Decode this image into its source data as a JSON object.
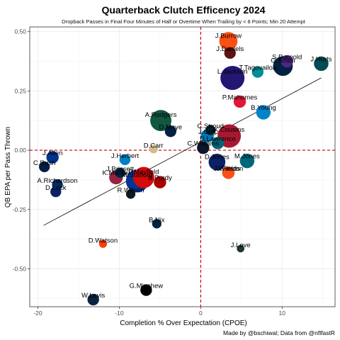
{
  "chart_data": {
    "type": "scatter",
    "title": "Quarterback Clutch Efficency 2024",
    "subtitle": "Dropback Passes in Final Four Minutes of Half or Overtime When Trailing by < 8 Points; Min 20 Attempt",
    "xlabel": "Completion % Over Expectation (CPOE)",
    "ylabel": "QB EPA per Pass Thrown",
    "caption": "Made by @bschiwal; Data from @nflfastR",
    "xlim": [
      -21,
      16.5
    ],
    "ylim": [
      -0.66,
      0.52
    ],
    "xticks": [
      -20,
      -10,
      0,
      10
    ],
    "xtick_labels": [
      "-20",
      "-10",
      "0",
      "10"
    ],
    "yticks": [
      -0.5,
      -0.25,
      0.0,
      0.25,
      0.5
    ],
    "ytick_labels": [
      "-0.50",
      "-0.25",
      "0.00",
      "0.25",
      "0.50"
    ],
    "grid": true,
    "reference_lines": {
      "x": 0,
      "y": 0,
      "color": "#cc0000",
      "style": "dashed"
    },
    "trend_line": {
      "x": [
        -19.3,
        14.8
      ],
      "y": [
        -0.317,
        0.305
      ]
    },
    "points": [
      {
        "name": "J.Burrow",
        "x": 3.4,
        "y": 0.46,
        "size": 1.8,
        "color": "#FB4F14"
      },
      {
        "name": "J.Daniels",
        "x": 3.6,
        "y": 0.41,
        "size": 0.9,
        "color": "#5A1414"
      },
      {
        "name": "S.Darnold",
        "x": 10.6,
        "y": 0.375,
        "size": 1.0,
        "color": "#4F2683"
      },
      {
        "name": "J.Hurts",
        "x": 14.8,
        "y": 0.365,
        "size": 1.3,
        "color": "#004C54"
      },
      {
        "name": "G.Smith",
        "x": 10.1,
        "y": 0.355,
        "size": 2.0,
        "color": "#002244"
      },
      {
        "name": "L.Jackson",
        "x": 3.9,
        "y": 0.305,
        "size": 2.6,
        "color": "#241773"
      },
      {
        "name": "T.Tagovailoa",
        "x": 7.0,
        "y": 0.33,
        "size": 0.9,
        "color": "#008E97"
      },
      {
        "name": "P.Mahomes",
        "x": 4.8,
        "y": 0.205,
        "size": 1.0,
        "color": "#E31837"
      },
      {
        "name": "B.Young",
        "x": 7.7,
        "y": 0.16,
        "size": 1.3,
        "color": "#0085CA"
      },
      {
        "name": "A.Rodgers",
        "x": -4.9,
        "y": 0.125,
        "size": 2.2,
        "color": "#125740"
      },
      {
        "name": "D.Maye",
        "x": -3.7,
        "y": 0.08,
        "size": 0.9,
        "color": "#002244"
      },
      {
        "name": "C.Stroud",
        "x": 1.2,
        "y": 0.085,
        "size": 0.7,
        "color": "#03202F"
      },
      {
        "name": "K.Cousins",
        "x": 3.5,
        "y": 0.06,
        "size": 2.5,
        "color": "#A71930"
      },
      {
        "name": "J.Goff",
        "x": 0.8,
        "y": 0.06,
        "size": 1.1,
        "color": "#0076B6"
      },
      {
        "name": "D.Carr",
        "x": -5.8,
        "y": 0.005,
        "size": 0.5,
        "color": "#D3BC8D"
      },
      {
        "name": "C.Williams",
        "x": 0.3,
        "y": 0.01,
        "size": 1.0,
        "color": "#0B162A"
      },
      {
        "name": "D.Lawrence",
        "x": 2.1,
        "y": 0.03,
        "size": 1.0,
        "color": "#006778"
      },
      {
        "name": "J.Herbert",
        "x": -9.3,
        "y": -0.04,
        "size": 0.8,
        "color": "#0080C6"
      },
      {
        "name": "J.Allen",
        "x": -18.2,
        "y": -0.03,
        "size": 1.0,
        "color": "#00338D"
      },
      {
        "name": "M.Jones",
        "x": 5.7,
        "y": -0.045,
        "size": 1.3,
        "color": "#006778"
      },
      {
        "name": "D.Jones",
        "x": 2.0,
        "y": -0.05,
        "size": 1.6,
        "color": "#0B2265"
      },
      {
        "name": "C.Rush",
        "x": -19.2,
        "y": -0.07,
        "size": 0.8,
        "color": "#041E42"
      },
      {
        "name": "J.Brissett",
        "x": -9.9,
        "y": -0.095,
        "size": 0.7,
        "color": "#002244"
      },
      {
        "name": "P.Mayfield",
        "x": -7.0,
        "y": -0.115,
        "size": 2.2,
        "color": "#D50A0A"
      },
      {
        "name": "A.Richardson",
        "x": -17.6,
        "y": -0.145,
        "size": 0.8,
        "color": "#002C5F"
      },
      {
        "name": "K.Murray",
        "x": -10.4,
        "y": -0.115,
        "size": 1.2,
        "color": "#97233F"
      },
      {
        "name": "J.Winston",
        "x": 3.4,
        "y": -0.095,
        "size": 1.0,
        "color": "#311D00"
      },
      {
        "name": "B.Purdy",
        "x": -5.0,
        "y": -0.135,
        "size": 1.0,
        "color": "#AA0000"
      },
      {
        "name": "M.Stafford",
        "x": -7.8,
        "y": -0.13,
        "size": 2.4,
        "color": "#003594"
      },
      {
        "name": "D.Lock",
        "x": -17.8,
        "y": -0.175,
        "size": 0.8,
        "color": "#0B2265"
      },
      {
        "name": "R.Wilson",
        "x": -8.6,
        "y": -0.185,
        "size": 0.6,
        "color": "#101820"
      },
      {
        "name": "J.Fields",
        "x": 3.4,
        "y": -0.095,
        "size": 1.0,
        "color": "#FB4F14"
      },
      {
        "name": "B.Nix",
        "x": -5.4,
        "y": -0.31,
        "size": 0.6,
        "color": "#002244"
      },
      {
        "name": "D.Watson",
        "x": -12.0,
        "y": -0.395,
        "size": 0.4,
        "color": "#FF3C00"
      },
      {
        "name": "J.Love",
        "x": 4.9,
        "y": -0.415,
        "size": 0.35,
        "color": "#203731"
      },
      {
        "name": "G.Minshew",
        "x": -6.7,
        "y": -0.59,
        "size": 0.9,
        "color": "#000000"
      },
      {
        "name": "W.Levis",
        "x": -13.2,
        "y": -0.63,
        "size": 0.9,
        "color": "#0C2340"
      }
    ]
  }
}
